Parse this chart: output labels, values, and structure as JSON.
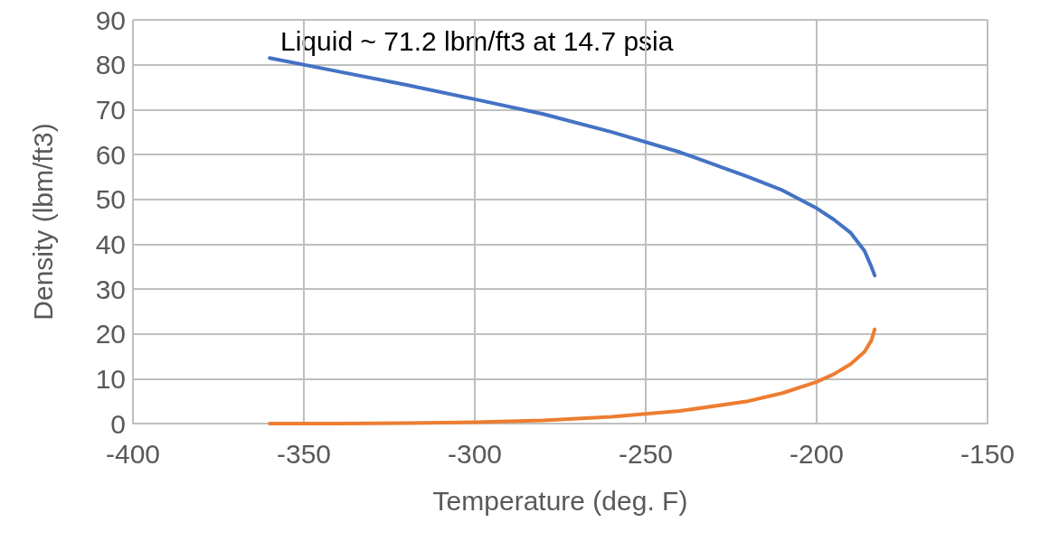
{
  "chart_data": {
    "type": "line",
    "xlabel": "Temperature (deg. F)",
    "ylabel": "Density (lbm/ft3)",
    "annotations": [
      "Liquid ~ 71.2 lbm/ft3 at 14.7 psia"
    ],
    "x": [
      -360,
      -340,
      -320,
      -300,
      -280,
      -260,
      -240,
      -220,
      -210,
      -200,
      -195,
      -190,
      -186,
      -184,
      -183
    ],
    "series": [
      {
        "color": "#4472c4",
        "values": [
          81.5,
          78.5,
          75.5,
          72.3,
          69,
          65,
          60.5,
          55,
          52,
          48,
          45.5,
          42.5,
          38.5,
          35,
          33
        ]
      },
      {
        "color": "#ed7d31",
        "values": [
          0,
          0,
          0.1,
          0.3,
          0.7,
          1.5,
          2.8,
          5,
          6.8,
          9.3,
          11,
          13.3,
          16,
          18.5,
          21
        ]
      }
    ],
    "xlim": [
      -400,
      -150
    ],
    "xticks": [
      -400,
      -350,
      -300,
      -250,
      -200,
      -150
    ],
    "ylim": [
      0,
      90
    ],
    "yticks": [
      0,
      10,
      20,
      30,
      40,
      50,
      60,
      70,
      80,
      90
    ],
    "grid": true,
    "marker": "none",
    "line_style": "solid"
  }
}
